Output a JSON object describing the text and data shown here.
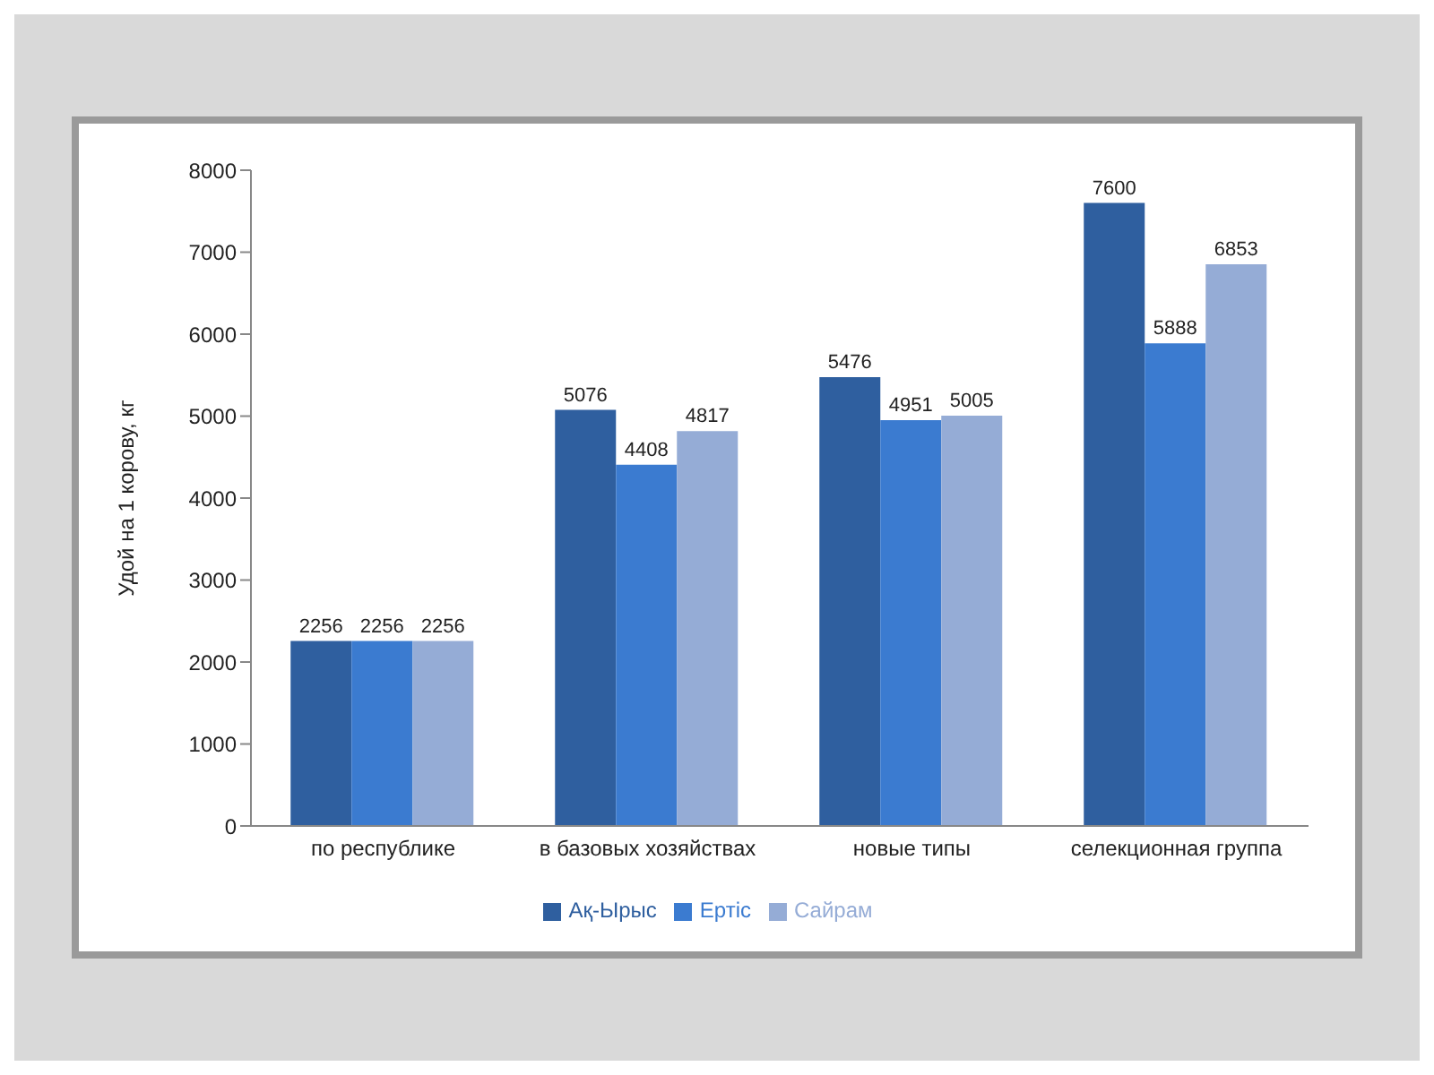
{
  "chart_data": {
    "type": "bar",
    "ylabel": "Удой на 1 корову, кг",
    "categories": [
      "по республике",
      "в базовых хозяйствах",
      "новые типы",
      "селекционная группа"
    ],
    "series": [
      {
        "name": "Ақ-Ырыс",
        "color": "#2f5f9f",
        "values": [
          2256,
          5076,
          5476,
          7600
        ]
      },
      {
        "name": "Ертіс",
        "color": "#3b7bd0",
        "values": [
          2256,
          4408,
          4951,
          5888
        ]
      },
      {
        "name": "Сайрам",
        "color": "#95acd6",
        "values": [
          2256,
          4817,
          5005,
          6853
        ]
      }
    ],
    "ylim": [
      0,
      8000
    ],
    "yticks": [
      0,
      1000,
      2000,
      3000,
      4000,
      5000,
      6000,
      7000,
      8000
    ],
    "grid": false,
    "legend": "bottom",
    "data_labels": true
  }
}
